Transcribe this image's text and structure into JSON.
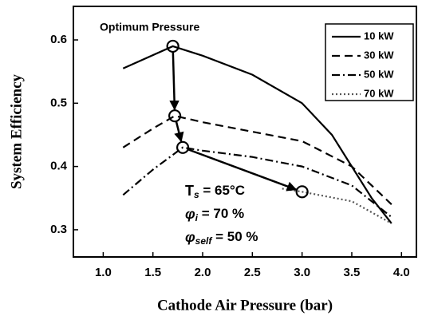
{
  "chart_data": {
    "type": "line",
    "xlabel": "Cathode Air Pressure (bar)",
    "ylabel": "System Efficiency",
    "xlim": [
      0.7,
      4.15
    ],
    "ylim": [
      0.257,
      0.653
    ],
    "xticks": [
      {
        "value": 1.0,
        "label": "1.0"
      },
      1.5,
      {
        "value": 2.0,
        "label": "2.0"
      },
      2.5,
      {
        "value": 3.0,
        "label": "3.0"
      },
      3.5,
      {
        "value": 4.0,
        "label": "4.0"
      }
    ],
    "yticks": [
      0.3,
      0.4,
      0.5,
      0.6
    ],
    "grid": false,
    "legend": "upper right",
    "series": [
      {
        "name": "10 kW",
        "color": "#000000",
        "style": "solid",
        "x": [
          1.2,
          1.7,
          2.0,
          2.5,
          3.0,
          3.3,
          3.5,
          3.7,
          3.9
        ],
        "values": [
          0.555,
          0.59,
          0.575,
          0.545,
          0.5,
          0.45,
          0.4,
          0.35,
          0.31
        ]
      },
      {
        "name": "30 kW",
        "color": "#000000",
        "style": "dash",
        "x": [
          1.2,
          1.5,
          1.72,
          2.0,
          2.5,
          3.0,
          3.5,
          3.9
        ],
        "values": [
          0.43,
          0.46,
          0.48,
          0.47,
          0.455,
          0.44,
          0.4,
          0.34
        ]
      },
      {
        "name": "50 kW",
        "color": "#000000",
        "style": "dashdot",
        "x": [
          1.2,
          1.5,
          1.8,
          2.0,
          2.5,
          3.0,
          3.5,
          3.9
        ],
        "values": [
          0.355,
          0.395,
          0.43,
          0.425,
          0.415,
          0.4,
          0.37,
          0.32
        ]
      },
      {
        "name": "70 kW",
        "color": "#555555",
        "style": "dot",
        "x": [
          2.8,
          3.0,
          3.5,
          3.9
        ],
        "values": [
          0.365,
          0.36,
          0.345,
          0.31
        ]
      }
    ],
    "optimum": {
      "label": "Optimum Pressure",
      "x": [
        1.7,
        1.72,
        1.8,
        3.0
      ],
      "values": [
        0.59,
        0.48,
        0.43,
        0.36
      ]
    },
    "annotations": [
      {
        "symbol": "T",
        "sub": "s",
        "text": " = 65°C"
      },
      {
        "symbol": "φ",
        "sub": "i",
        "text": " = 70 %"
      },
      {
        "symbol": "φ",
        "sub": "self",
        "text": " = 50 %"
      }
    ]
  }
}
